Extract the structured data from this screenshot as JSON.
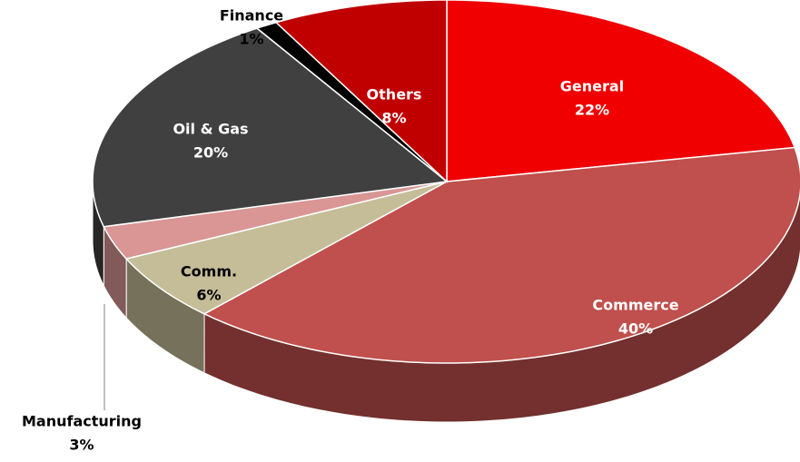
{
  "chart_data": {
    "type": "pie3d",
    "categories": [
      "General",
      "Commerce",
      "Comm.",
      "Manufacturing",
      "Oil & Gas",
      "Finance",
      "Others"
    ],
    "values": [
      22,
      40,
      6,
      3,
      20,
      1,
      8
    ],
    "value_labels": [
      "22%",
      "40%",
      "6%",
      "3%",
      "20%",
      "1%",
      "8%"
    ],
    "colors": [
      "#f00000",
      "#c0504d",
      "#c4bd97",
      "#d99694",
      "#404040",
      "#000000",
      "#c00000"
    ]
  }
}
